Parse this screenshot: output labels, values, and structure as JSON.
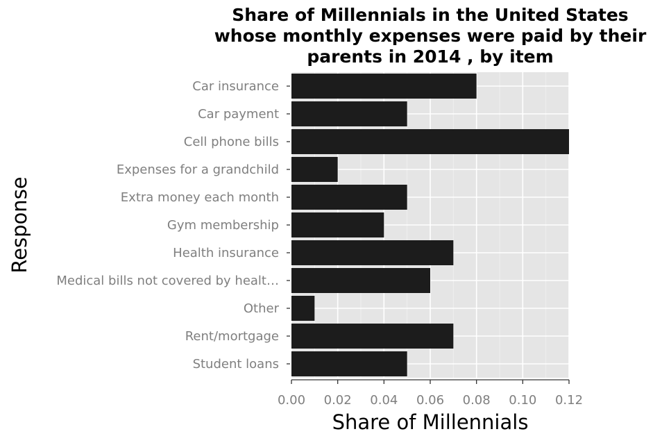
{
  "chart_data": {
    "type": "bar",
    "orientation": "horizontal",
    "title": "Share of Millennials in the United States whose monthly expenses were paid by their parents in 2014 , by item",
    "title_lines": [
      "Share of Millennials in the United States",
      "whose monthly expenses were paid by their",
      "parents in 2014 , by item"
    ],
    "xlabel": "Share of Millennials",
    "ylabel": "Response",
    "categories": [
      "Car insurance",
      "Car payment",
      "Cell phone bills",
      "Expenses for a grandchild",
      "Extra money each month",
      "Gym membership",
      "Health insurance",
      "Medical bills not covered by healt…",
      "Other",
      "Rent/mortgage",
      "Student loans"
    ],
    "values": [
      0.08,
      0.05,
      0.12,
      0.02,
      0.05,
      0.04,
      0.07,
      0.06,
      0.01,
      0.07,
      0.05
    ],
    "xlim": [
      0,
      0.12
    ],
    "xticks": [
      "0.00",
      "0.02",
      "0.04",
      "0.06",
      "0.08",
      "0.10",
      "0.12"
    ],
    "grid": true,
    "bar_color": "#1c1c1c",
    "panel_color": "#e5e5e5"
  }
}
